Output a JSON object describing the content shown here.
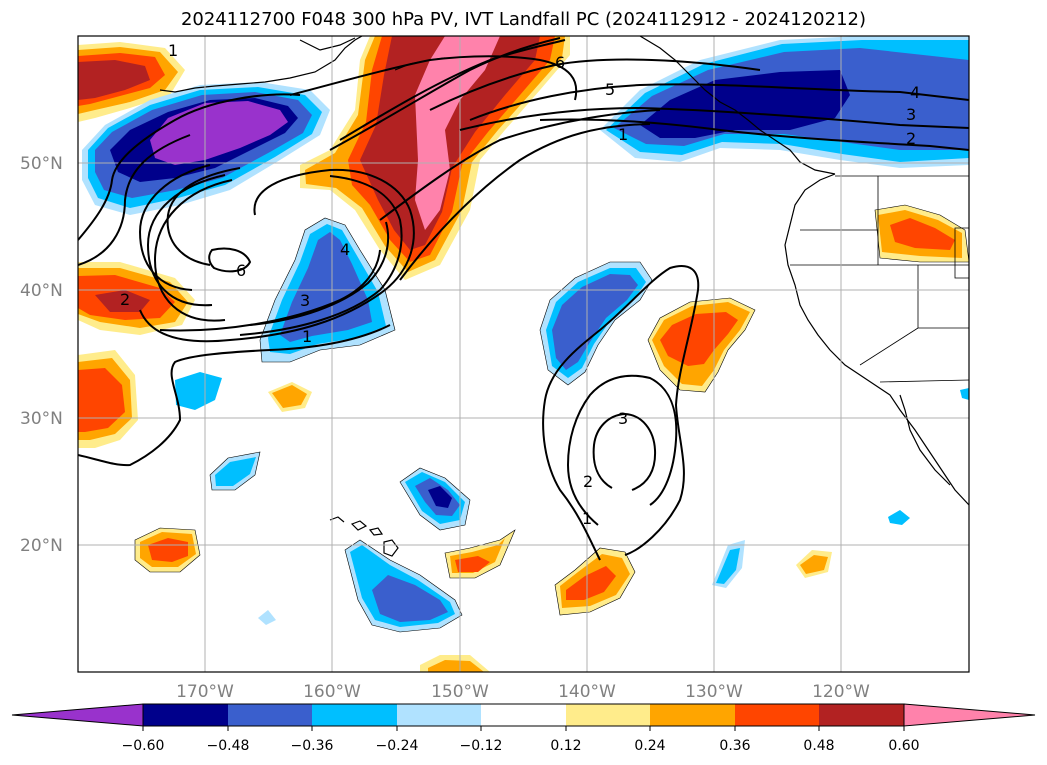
{
  "title": "2024112700 F048 300 hPa PV, IVT Landfall PC (2024112912 - 2024120212)",
  "lat_ticks": [
    "50°N",
    "40°N",
    "30°N",
    "20°N"
  ],
  "lon_ticks": [
    "170°W",
    "160°W",
    "150°W",
    "140°W",
    "130°W",
    "120°W"
  ],
  "colorbar": {
    "tick_labels": [
      "−0.60",
      "−0.48",
      "−0.36",
      "−0.24",
      "−0.12",
      "0.12",
      "0.24",
      "0.36",
      "0.48",
      "0.60"
    ],
    "colors": [
      "#9932cc",
      "#00008b",
      "#3a5fcd",
      "#00bfff",
      "#b0e2ff",
      "#ffffff",
      "#ffec8b",
      "#ffa500",
      "#ff4500",
      "#b22222",
      "#ff82ab"
    ]
  },
  "contour_labels": [
    "1",
    "2",
    "3",
    "4",
    "5",
    "6"
  ],
  "map_extent": {
    "lon": [
      -180,
      -110
    ],
    "lat": [
      10,
      60
    ]
  }
}
